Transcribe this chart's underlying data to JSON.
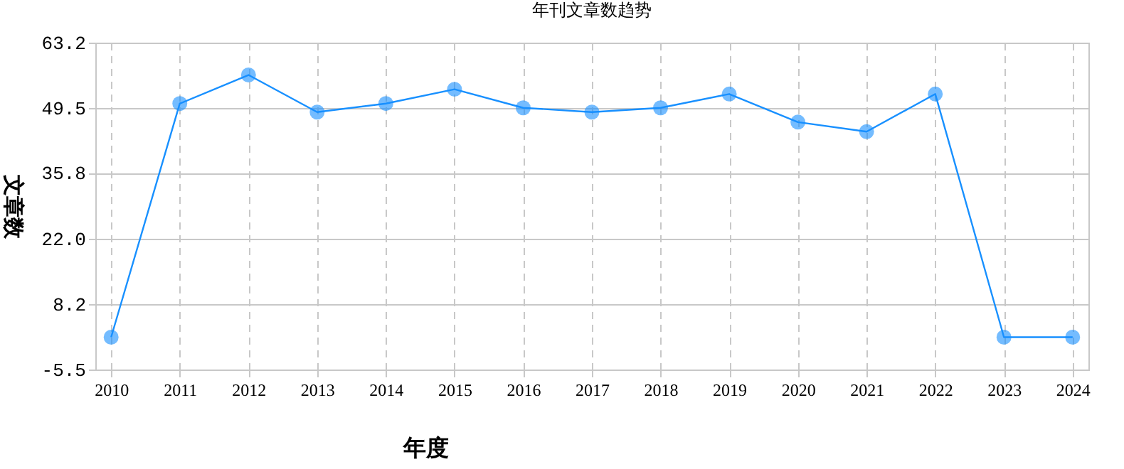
{
  "chart_data": {
    "type": "line",
    "title": "年刊文章数趋势",
    "xlabel": "年度",
    "ylabel": "文章数",
    "categories": [
      "2010",
      "2011",
      "2012",
      "2013",
      "2014",
      "2015",
      "2016",
      "2017",
      "2018",
      "2019",
      "2020",
      "2021",
      "2022",
      "2023",
      "2024"
    ],
    "series": [
      {
        "color": "#1890ff",
        "values": [
          1.3,
          50.4,
          56.4,
          48.6,
          50.4,
          53.4,
          49.5,
          48.6,
          49.5,
          52.4,
          46.5,
          44.5,
          52.4,
          1.3,
          1.3
        ]
      }
    ],
    "ylim": [
      -5.5,
      63.2
    ],
    "yticks": [
      {
        "value": -5.5,
        "label": "-5.5"
      },
      {
        "value": 8.2,
        "label": "8.2"
      },
      {
        "value": 22.0,
        "label": "22.0"
      },
      {
        "value": 35.8,
        "label": "35.8"
      },
      {
        "value": 49.5,
        "label": "49.5"
      },
      {
        "value": 63.2,
        "label": "63.2"
      }
    ],
    "grid": true,
    "marker": "circle",
    "line_style": "solid"
  }
}
